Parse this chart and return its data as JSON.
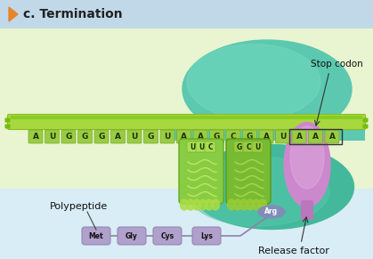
{
  "title": "c. Termination",
  "bg_color": "#d8edf5",
  "header_bg": "#c0d8e8",
  "mrna_sequence": [
    "A",
    "U",
    "G",
    "G",
    "G",
    "A",
    "U",
    "G",
    "U",
    "A",
    "A",
    "G",
    "C",
    "G",
    "A",
    "U",
    "A",
    "A",
    "A"
  ],
  "stop_codon_label": "Stop codon",
  "polypeptide_label": "Polypeptide",
  "release_factor_label": "Release factor",
  "amino_acids": [
    "Met",
    "Gly",
    "Cys",
    "Lys"
  ],
  "trna_codons_left": [
    "U",
    "U",
    "C"
  ],
  "trna_codons_right": [
    "G",
    "C",
    "U"
  ]
}
